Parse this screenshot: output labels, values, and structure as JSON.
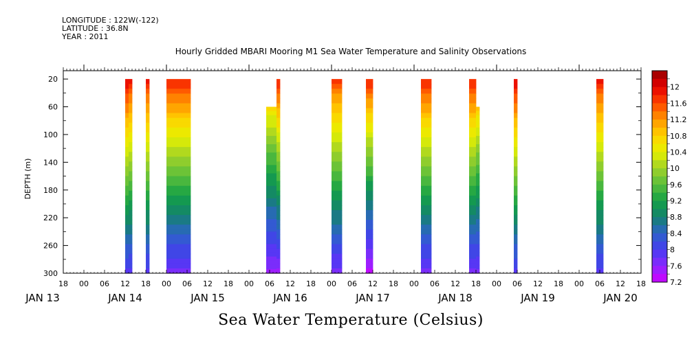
{
  "meta": {
    "longitude": "LONGITUDE : 122W(-122)",
    "latitude": "LATITUDE : 36.8N",
    "year": "YEAR : 2011"
  },
  "chart_data": {
    "type": "heatmap",
    "title": "Hourly Gridded MBARI Mooring M1 Sea Water Temperature and Salinity Observations",
    "xlabel": "Sea Water Temperature (Celsius)",
    "ylabel": "DEPTH (m)",
    "y_ticks": [
      20,
      60,
      100,
      140,
      180,
      220,
      260,
      300
    ],
    "ylim": [
      300,
      8
    ],
    "x_range_hours": [
      -6,
      162
    ],
    "x_ticks_hours": [
      -6,
      0,
      6,
      12,
      18,
      24,
      30,
      36,
      42,
      48,
      54,
      60,
      66,
      72,
      78,
      84,
      90,
      96,
      102,
      108,
      114,
      120,
      126,
      132,
      138,
      144,
      150,
      156,
      162
    ],
    "x_tick_labels": [
      "18",
      "00",
      "06",
      "12",
      "18",
      "00",
      "06",
      "12",
      "18",
      "00",
      "06",
      "12",
      "18",
      "00",
      "06",
      "12",
      "18",
      "00",
      "06",
      "12",
      "18",
      "00",
      "06",
      "12",
      "18",
      "00",
      "06",
      "12",
      "18"
    ],
    "date_labels": [
      {
        "label": "JAN 13",
        "hour": -12
      },
      {
        "label": "JAN 14",
        "hour": 12
      },
      {
        "label": "JAN 15",
        "hour": 36
      },
      {
        "label": "JAN 16",
        "hour": 60
      },
      {
        "label": "JAN 17",
        "hour": 84
      },
      {
        "label": "JAN 18",
        "hour": 108
      },
      {
        "label": "JAN 19",
        "hour": 132
      },
      {
        "label": "JAN 20",
        "hour": 156
      }
    ],
    "colorbar": {
      "min": 7.2,
      "max": 12.4,
      "step": 0.2,
      "labels": [
        "12",
        "11.6",
        "11.2",
        "10.8",
        "10.4",
        "10",
        "9.6",
        "9.2",
        "8.8",
        "8.4",
        "8",
        "7.6",
        "7.2"
      ]
    },
    "segments": [
      {
        "start": 12.0,
        "end": 13.0,
        "top": 20,
        "top_temp": 12.0,
        "bottom_temp": 7.8
      },
      {
        "start": 13.0,
        "end": 14.0,
        "top": 20,
        "top_temp": 11.8,
        "bottom_temp": 7.8
      },
      {
        "start": 18.0,
        "end": 19.0,
        "top": 20,
        "top_temp": 11.8,
        "bottom_temp": 7.8
      },
      {
        "start": 24.0,
        "end": 31.0,
        "top": 20,
        "top_temp": 11.8,
        "bottom_temp": 7.6
      },
      {
        "start": 53.0,
        "end": 56.0,
        "top": 60,
        "top_temp": 10.6,
        "bottom_temp": 7.4
      },
      {
        "start": 56.0,
        "end": 57.0,
        "top": 20,
        "top_temp": 11.8,
        "bottom_temp": 7.4
      },
      {
        "start": 72.0,
        "end": 75.0,
        "top": 20,
        "top_temp": 11.6,
        "bottom_temp": 7.6
      },
      {
        "start": 82.0,
        "end": 84.0,
        "top": 20,
        "top_temp": 11.8,
        "bottom_temp": 7.2
      },
      {
        "start": 98.0,
        "end": 101.0,
        "top": 20,
        "top_temp": 11.8,
        "bottom_temp": 7.6
      },
      {
        "start": 112.0,
        "end": 114.0,
        "top": 20,
        "top_temp": 11.8,
        "bottom_temp": 7.6
      },
      {
        "start": 114.0,
        "end": 115.0,
        "top": 60,
        "top_temp": 10.8,
        "bottom_temp": 7.6
      },
      {
        "start": 125.0,
        "end": 126.0,
        "top": 20,
        "top_temp": 12.0,
        "bottom_temp": 7.8
      },
      {
        "start": 149.0,
        "end": 151.0,
        "top": 20,
        "top_temp": 11.8,
        "bottom_temp": 7.8
      }
    ]
  }
}
